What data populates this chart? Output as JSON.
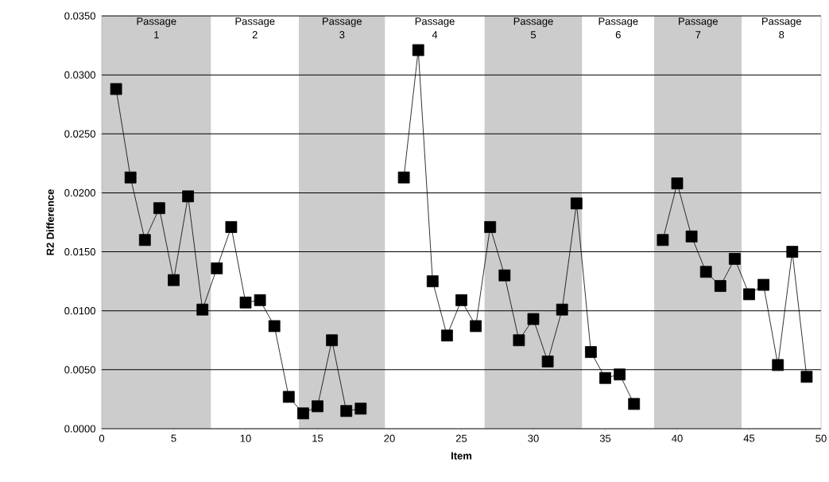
{
  "chart_data": {
    "type": "line",
    "xlabel": "Item",
    "ylabel": "R2 Difference",
    "x": [
      1,
      2,
      3,
      4,
      5,
      6,
      7,
      8,
      9,
      10,
      11,
      12,
      13,
      14,
      15,
      16,
      17,
      18,
      19,
      20,
      21,
      22,
      23,
      24,
      25,
      26,
      27,
      28,
      29,
      30,
      31,
      32,
      33,
      34,
      35,
      36,
      37,
      38,
      39,
      40,
      41,
      42,
      43,
      44,
      45,
      46,
      47,
      48,
      49
    ],
    "series": [
      {
        "color": "#000000",
        "values": [
          0.0288,
          0.0213,
          0.016,
          0.0187,
          0.0126,
          0.0197,
          0.0101,
          0.0136,
          0.0171,
          0.0107,
          0.0109,
          0.0087,
          0.0027,
          0.0013,
          0.0019,
          0.0075,
          0.0015,
          0.0017,
          null,
          null,
          0.0213,
          0.0321,
          0.0125,
          0.0079,
          0.0109,
          0.0087,
          0.0171,
          0.013,
          0.0075,
          0.0093,
          0.0057,
          0.0101,
          0.0191,
          0.0065,
          0.0043,
          0.0046,
          0.0021,
          null,
          0.016,
          0.0208,
          0.0163,
          0.0133,
          0.0121,
          0.0144,
          0.0114,
          0.0122,
          0.0054,
          0.015,
          0.0044
        ]
      }
    ],
    "xlim": [
      0,
      50
    ],
    "xticks": [
      0,
      5,
      10,
      15,
      20,
      25,
      30,
      35,
      40,
      45,
      50
    ],
    "ylim": [
      0,
      0.035
    ],
    "yticks": [
      {
        "value": 0,
        "label": "0.0000"
      },
      {
        "value": 0.005,
        "label": "0.0050"
      },
      {
        "value": 0.01,
        "label": "0.0100"
      },
      {
        "value": 0.015,
        "label": "0.0150"
      },
      {
        "value": 0.02,
        "label": "0.0200"
      },
      {
        "value": 0.025,
        "label": "0.0250"
      },
      {
        "value": 0.03,
        "label": "0.0300"
      },
      {
        "value": 0.035,
        "label": "0.0350"
      }
    ],
    "bands": [
      {
        "axis": "x",
        "from": 0,
        "to": 7.6,
        "label": "Passage 1",
        "color": "#cccccc"
      },
      {
        "axis": "x",
        "from": 7.6,
        "to": 13.7,
        "label": "Passage 2",
        "color": "#ffffff"
      },
      {
        "axis": "x",
        "from": 13.7,
        "to": 19.7,
        "label": "Passage 3",
        "color": "#cccccc"
      },
      {
        "axis": "x",
        "from": 19.7,
        "to": 26.6,
        "label": "Passage 4",
        "color": "#ffffff"
      },
      {
        "axis": "x",
        "from": 26.6,
        "to": 33.4,
        "label": "Passage 5",
        "color": "#cccccc"
      },
      {
        "axis": "x",
        "from": 33.4,
        "to": 38.4,
        "label": "Passage 6",
        "color": "#ffffff"
      },
      {
        "axis": "x",
        "from": 38.4,
        "to": 44.5,
        "label": "Passage 7",
        "color": "#cccccc"
      },
      {
        "axis": "x",
        "from": 44.5,
        "to": 50,
        "label": "Passage 8",
        "color": "#ffffff"
      }
    ],
    "grid": "y",
    "marker": "square",
    "line_style": "solid"
  }
}
